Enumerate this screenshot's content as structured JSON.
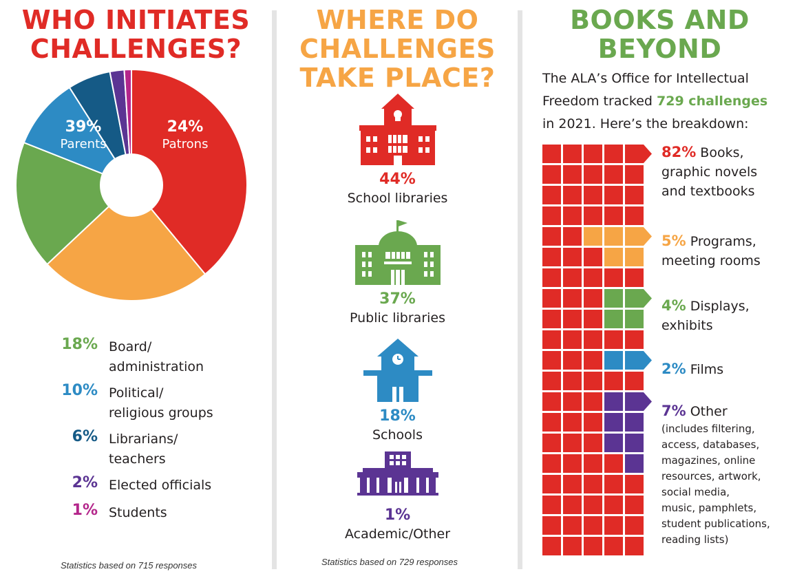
{
  "colors": {
    "red": "#e02b26",
    "orange": "#f6a545",
    "green": "#6aa84f",
    "blue": "#2d8bc4",
    "navy": "#155a86",
    "purple": "#5b3493",
    "magenta": "#b4268b"
  },
  "section1": {
    "title_lines": [
      "WHO INITIATES",
      "CHALLENGES?"
    ],
    "footnote": "Statistics based on 715 responses"
  },
  "section2": {
    "title_lines": [
      "WHERE DO",
      "CHALLENGES",
      "TAKE PLACE?"
    ],
    "footnote": "Statistics based on 729 responses"
  },
  "section3": {
    "title_lines": [
      "BOOKS AND",
      "BEYOND"
    ],
    "intro_line1": "The ALA’s Office for Intellectual",
    "intro_line2_prefix": "Freedom tracked ",
    "intro_highlight": "729 challenges",
    "intro_line3": "in 2021. Here’s the breakdown:"
  },
  "chart_data": [
    {
      "type": "pie",
      "title": "WHO INITIATES CHALLENGES?",
      "note": "Statistics based on 715 responses",
      "slices": [
        {
          "label": "Parents",
          "lines": [
            "Parents"
          ],
          "pct": "39%",
          "value": 39,
          "color": "#e02b26"
        },
        {
          "label": "Patrons",
          "lines": [
            "Patrons"
          ],
          "pct": "24%",
          "value": 24,
          "color": "#f6a545"
        },
        {
          "label": "Board/ administration",
          "lines": [
            "Board/",
            "administration"
          ],
          "pct": "18%",
          "value": 18,
          "color": "#6aa84f"
        },
        {
          "label": "Political/ religious groups",
          "lines": [
            "Political/",
            "religious groups"
          ],
          "pct": "10%",
          "value": 10,
          "color": "#2d8bc4"
        },
        {
          "label": "Librarians/ teachers",
          "lines": [
            "Librarians/",
            "teachers"
          ],
          "pct": "6%",
          "value": 6,
          "color": "#155a86"
        },
        {
          "label": "Elected officials",
          "lines": [
            "Elected officials"
          ],
          "pct": "2%",
          "value": 2,
          "color": "#5b3493"
        },
        {
          "label": "Students",
          "lines": [
            "Students"
          ],
          "pct": "1%",
          "value": 1,
          "color": "#b4268b"
        }
      ]
    },
    {
      "type": "table",
      "title": "WHERE DO CHALLENGES TAKE PLACE?",
      "note": "Statistics based on 729 responses",
      "rows": [
        {
          "label": "School libraries",
          "pct": "44%",
          "value": 44,
          "icon": "school-library-building-icon",
          "color": "#e02b26"
        },
        {
          "label": "Public libraries",
          "pct": "37%",
          "value": 37,
          "icon": "public-library-building-icon",
          "color": "#6aa84f"
        },
        {
          "label": "Schools",
          "pct": "18%",
          "value": 18,
          "icon": "schoolhouse-icon",
          "color": "#2d8bc4"
        },
        {
          "label": "Academic/Other",
          "pct": "1%",
          "value": 1,
          "icon": "academic-building-icon",
          "color": "#5b3493"
        }
      ]
    },
    {
      "type": "bar",
      "title": "BOOKS AND BEYOND",
      "total_challenges": 729,
      "categories": [
        {
          "pct": "82%",
          "value": 82,
          "lines": [
            "Books,",
            "graphic novels",
            "and textbooks"
          ],
          "color": "#e02b26"
        },
        {
          "pct": "5%",
          "value": 5,
          "lines": [
            "Programs,",
            "meeting rooms"
          ],
          "color": "#f6a545"
        },
        {
          "pct": "4%",
          "value": 4,
          "lines": [
            "Displays,",
            "exhibits"
          ],
          "color": "#6aa84f"
        },
        {
          "pct": "2%",
          "value": 2,
          "lines": [
            "Films"
          ],
          "color": "#2d8bc4"
        },
        {
          "pct": "7%",
          "value": 7,
          "lines": [
            "Other"
          ],
          "detail": [
            "(includes filtering,",
            "access, databases,",
            "magazines, online",
            "resources, artwork,",
            "social media,",
            "music, pamphlets,",
            "student publications,",
            "reading lists)"
          ],
          "color": "#5b3493"
        }
      ]
    }
  ]
}
